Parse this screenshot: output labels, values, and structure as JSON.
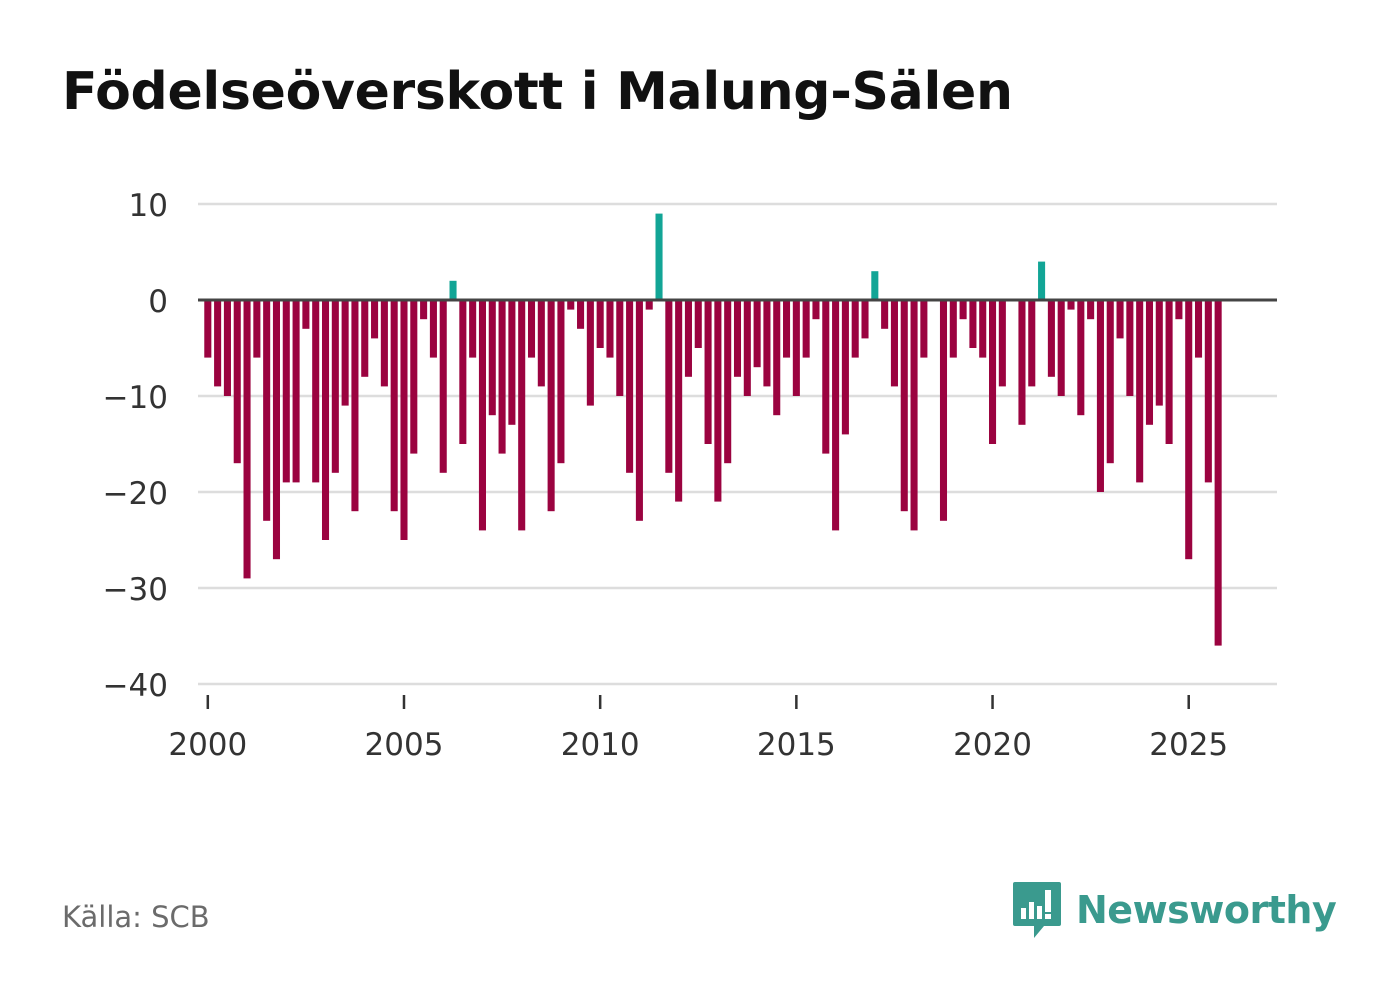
{
  "title": "Födelseöverskott i Malung-Sälen",
  "source": "Källa: SCB",
  "brand": "Newsworthy",
  "colors": {
    "positive": "#12a596",
    "negative": "#9b0340",
    "grid": "#dddddd",
    "zero": "#444444",
    "brand": "#3a9a8e"
  },
  "chart_data": {
    "type": "bar",
    "title": "Födelseöverskott i Malung-Sälen",
    "xlabel": "",
    "ylabel": "",
    "ylim": [
      -40,
      10
    ],
    "yticks": [
      10,
      0,
      -10,
      -20,
      -30,
      -40
    ],
    "ytick_labels": [
      "10",
      "0",
      "−10",
      "−20",
      "−30",
      "−40"
    ],
    "xlim": [
      1999.75,
      2027.25
    ],
    "xticks": [
      2000,
      2005,
      2010,
      2015,
      2020,
      2025
    ],
    "xtick_labels": [
      "2000",
      "2005",
      "2010",
      "2015",
      "2020",
      "2025"
    ],
    "grid": true,
    "frequency": "quarterly",
    "start": 2000.0,
    "values": [
      -6,
      -9,
      -10,
      -17,
      -29,
      -6,
      -23,
      -27,
      -19,
      -19,
      -3,
      -19,
      -25,
      -18,
      -11,
      -22,
      -8,
      -4,
      -9,
      -22,
      -25,
      -16,
      -2,
      -6,
      -18,
      2,
      -15,
      -6,
      -24,
      -12,
      -16,
      -13,
      -24,
      -6,
      -9,
      -22,
      -17,
      -1,
      -3,
      -11,
      -5,
      -6,
      -10,
      -18,
      -23,
      -1,
      9,
      -18,
      -21,
      -8,
      -5,
      -15,
      -21,
      -17,
      -8,
      -10,
      -7,
      -9,
      -12,
      -6,
      -10,
      -6,
      -2,
      -16,
      -24,
      -14,
      -6,
      -4,
      3,
      -3,
      -9,
      -22,
      -24,
      -6,
      0,
      -23,
      -6,
      -2,
      -5,
      -6,
      -15,
      -9,
      0,
      -13,
      -9,
      4,
      -8,
      -10,
      -1,
      -12,
      -2,
      -20,
      -17,
      -4,
      -10,
      -19,
      -13,
      -11,
      -15,
      -2,
      -27,
      -6,
      -19,
      -36
    ]
  }
}
